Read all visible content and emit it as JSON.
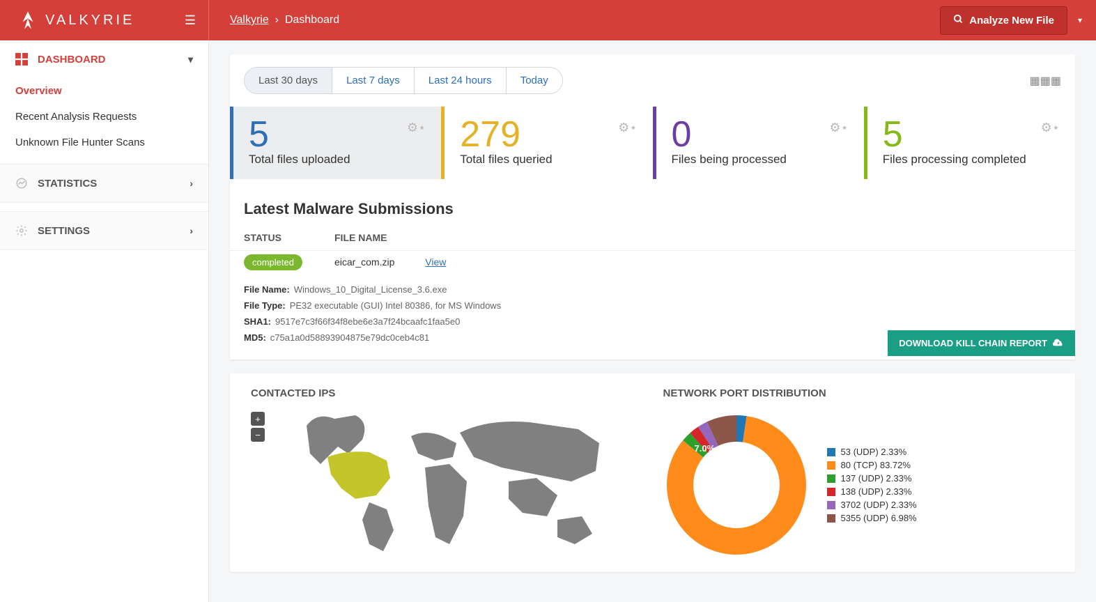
{
  "header": {
    "logo_text": "VALKYRIE",
    "breadcrumb_root": "Valkyrie",
    "breadcrumb_sep": "›",
    "breadcrumb_page": "Dashboard",
    "analyze_btn": "Analyze New File"
  },
  "sidebar": {
    "dashboard": {
      "label": "DASHBOARD",
      "items": [
        "Overview",
        "Recent Analysis Requests",
        "Unknown File Hunter Scans"
      ],
      "active_index": 0
    },
    "statistics": {
      "label": "STATISTICS"
    },
    "settings": {
      "label": "SETTINGS"
    }
  },
  "range_tabs": [
    "Last 30 days",
    "Last 7 days",
    "Last 24 hours",
    "Today"
  ],
  "range_active": 0,
  "stats": [
    {
      "value": "5",
      "label": "Total files uploaded",
      "color": "#2f6fb5"
    },
    {
      "value": "279",
      "label": "Total files queried",
      "color": "#e5b127"
    },
    {
      "value": "0",
      "label": "Files being processed",
      "color": "#6b3fa0"
    },
    {
      "value": "5",
      "label": "Files processing completed",
      "color": "#86b817"
    }
  ],
  "latest": {
    "title": "Latest Malware Submissions",
    "col_status": "STATUS",
    "col_file": "FILE NAME",
    "row": {
      "status": "completed",
      "file": "eicar_com.zip",
      "view": "View"
    }
  },
  "detail": {
    "file_name_k": "File Name:",
    "file_name_v": "Windows_10_Digital_License_3.6.exe",
    "file_type_k": "File Type:",
    "file_type_v": "PE32 executable (GUI) Intel 80386, for MS Windows",
    "sha1_k": "SHA1:",
    "sha1_v": "9517e7c3f66f34f8ebe6e3a7f24bcaafc1faa5e0",
    "md5_k": "MD5:",
    "md5_v": "c75a1a0d58893904875e79dc0ceb4c81",
    "kc_btn": "DOWNLOAD KILL CHAIN REPORT"
  },
  "contacted_ips": {
    "title": "CONTACTED IPS",
    "highlight_color": "#c3c52a",
    "land_color": "#808080",
    "bg": "#ffffff"
  },
  "port_dist": {
    "title": "NETWORK PORT DISTRIBUTION",
    "inner_label": "7.0%",
    "slices": [
      {
        "label": "53 (UDP) 2.33%",
        "pct": 2.33,
        "color": "#1f77b4"
      },
      {
        "label": "80 (TCP) 83.72%",
        "pct": 83.72,
        "color": "#ff8c1a"
      },
      {
        "label": "137 (UDP) 2.33%",
        "pct": 2.33,
        "color": "#2ca02c"
      },
      {
        "label": "138 (UDP) 2.33%",
        "pct": 2.33,
        "color": "#d62728"
      },
      {
        "label": "3702 (UDP) 2.33%",
        "pct": 2.33,
        "color": "#9467bd"
      },
      {
        "label": "5355 (UDP) 6.98%",
        "pct": 6.98,
        "color": "#8c564b"
      }
    ],
    "donut_outer_r": 100,
    "donut_inner_r": 62
  }
}
